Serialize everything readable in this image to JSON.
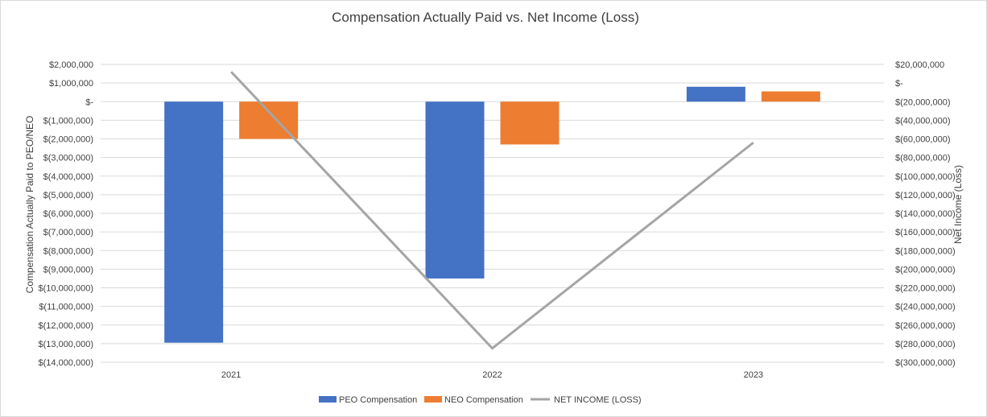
{
  "chart_data": {
    "type": "bar",
    "title": "Compensation Actually Paid vs. Net Income (Loss)",
    "categories": [
      "2021",
      "2022",
      "2023"
    ],
    "ylabel": "Compensation Actually Paid to PEO/NEO",
    "y2label": "Net Income (Loss)",
    "ylim": [
      -14000000,
      2000000
    ],
    "y2lim": [
      -300000000,
      20000000
    ],
    "yticks": [
      "$2,000,000",
      "$1,000,000",
      "$-",
      "$(1,000,000)",
      "$(2,000,000)",
      "$(3,000,000)",
      "$(4,000,000)",
      "$(5,000,000)",
      "$(6,000,000)",
      "$(7,000,000)",
      "$(8,000,000)",
      "$(9,000,000)",
      "$(10,000,000)",
      "$(11,000,000)",
      "$(12,000,000)",
      "$(13,000,000)",
      "$(14,000,000)"
    ],
    "y2ticks": [
      "$20,000,000",
      "$-",
      "$(20,000,000)",
      "$(40,000,000)",
      "$(60,000,000)",
      "$(80,000,000)",
      "$(100,000,000)",
      "$(120,000,000)",
      "$(140,000,000)",
      "$(160,000,000)",
      "$(180,000,000)",
      "$(200,000,000)",
      "$(220,000,000)",
      "$(240,000,000)",
      "$(260,000,000)",
      "$(280,000,000)",
      "$(300,000,000)"
    ],
    "series": [
      {
        "name": "PEO Compensation",
        "type": "bar",
        "axis": "left",
        "color": "#4472c4",
        "values": [
          -12950000,
          -9500000,
          800000
        ]
      },
      {
        "name": "NEO Compensation",
        "type": "bar",
        "axis": "left",
        "color": "#ed7d31",
        "values": [
          -2000000,
          -2300000,
          550000
        ]
      },
      {
        "name": "NET INCOME (LOSS)",
        "type": "line",
        "axis": "right",
        "color": "#a5a5a5",
        "values": [
          12000000,
          -285000000,
          -64000000
        ]
      }
    ],
    "legend_position": "bottom",
    "grid": true
  }
}
